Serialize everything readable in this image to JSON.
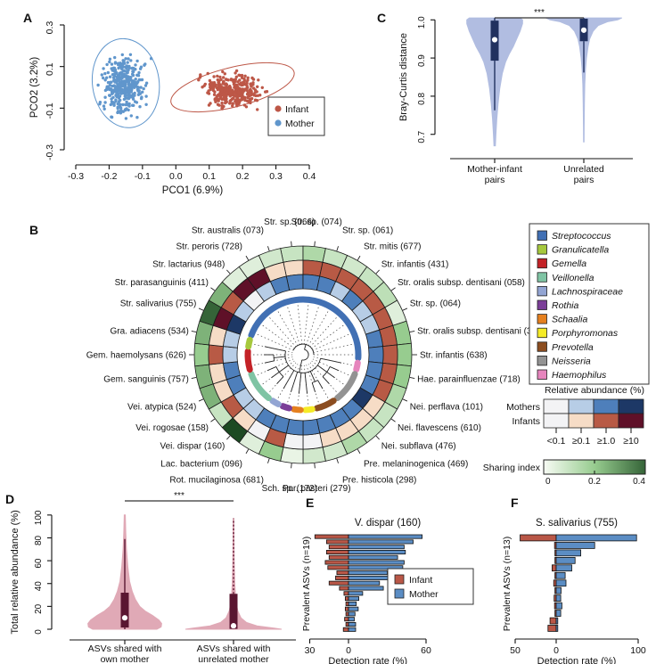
{
  "figure": {
    "panel_labels": {
      "A": "A",
      "B": "B",
      "C": "C",
      "D": "D",
      "E": "E",
      "F": "F"
    }
  },
  "colors": {
    "infant": "#bd5747",
    "mother": "#6096cc",
    "infant_bar": "#b95747",
    "mother_bar": "#5b8dc4",
    "violin_blue_fill": "#b1bde1",
    "violin_blue_box": "#21315f",
    "violin_pink_fill": "#e0a9b6",
    "violin_pink_box": "#5a1631",
    "mother_scale": [
      "#f3f3f5",
      "#b7cde6",
      "#4e7fbb",
      "#1d3866"
    ],
    "infant_scale": [
      "#f3f3f5",
      "#f6dcc6",
      "#b85a45",
      "#5f1028"
    ],
    "sharing_stops": [
      "#f7fbf4",
      "#97cc8f",
      "#1c4a22"
    ]
  },
  "chart_data": [
    {
      "id": "A",
      "type": "scatter",
      "xlabel": "PCO1 (6.9%)",
      "ylabel": "PCO2 (3.2%)",
      "xlim": [
        -0.3,
        0.4
      ],
      "ylim": [
        -0.3,
        0.3
      ],
      "xticks": [
        -0.3,
        -0.2,
        -0.1,
        0.0,
        0.1,
        0.2,
        0.3,
        0.4
      ],
      "yticks": [
        0.3,
        0.1,
        -0.1,
        -0.3
      ],
      "legend": [
        {
          "label": "Infant",
          "color_key": "infant"
        },
        {
          "label": "Mother",
          "color_key": "mother"
        }
      ],
      "clusters": [
        {
          "group": "Mother",
          "n": 380,
          "cx": -0.155,
          "cy": 0.005,
          "sx": 0.085,
          "sy": 0.185,
          "color_key": "mother"
        },
        {
          "group": "Infant",
          "n": 340,
          "cx": 0.165,
          "cy": -0.015,
          "sx": 0.125,
          "sy": 0.115,
          "color_key": "infant"
        }
      ],
      "ellipses": [
        {
          "group": "Mother",
          "cx": -0.15,
          "cy": 0.02,
          "rx": 0.1,
          "ry": 0.215,
          "rot": -8,
          "color_key": "mother"
        },
        {
          "group": "Infant",
          "cx": 0.17,
          "cy": 0.0,
          "rx": 0.19,
          "ry": 0.095,
          "rot": -14,
          "color_key": "infant"
        }
      ]
    },
    {
      "id": "C",
      "type": "violin",
      "ylabel": "Bray-Curtis distance",
      "yticks": [
        0.7,
        0.8,
        0.9,
        1.0
      ],
      "ylim": [
        0.655,
        1.01
      ],
      "significance": "***",
      "groups": [
        {
          "label_lines": [
            "Mother-infant",
            "pairs"
          ],
          "median": 0.948,
          "q1": 0.893,
          "q3": 0.998,
          "whisker_low": 0.763,
          "whisker_high": 1.005,
          "dash_tail": false,
          "profile": [
            [
              1.005,
              0.3
            ],
            [
              1.0,
              0.33
            ],
            [
              0.99,
              0.33
            ],
            [
              0.97,
              0.3
            ],
            [
              0.95,
              0.26
            ],
            [
              0.93,
              0.22
            ],
            [
              0.91,
              0.17
            ],
            [
              0.89,
              0.13
            ],
            [
              0.86,
              0.09
            ],
            [
              0.82,
              0.06
            ],
            [
              0.78,
              0.04
            ],
            [
              0.74,
              0.025
            ],
            [
              0.7,
              0.015
            ],
            [
              0.67,
              0.008
            ]
          ]
        },
        {
          "label_lines": [
            "Unrelated",
            "pairs"
          ],
          "median": 0.973,
          "q1": 0.944,
          "q3": 1.003,
          "whisker_low": 0.862,
          "whisker_high": 1.005,
          "dash_tail": false,
          "profile": [
            [
              1.005,
              0.45
            ],
            [
              1.0,
              0.4
            ],
            [
              0.995,
              0.28
            ],
            [
              0.985,
              0.17
            ],
            [
              0.97,
              0.11
            ],
            [
              0.95,
              0.07
            ],
            [
              0.93,
              0.05
            ],
            [
              0.9,
              0.032
            ],
            [
              0.87,
              0.02
            ],
            [
              0.83,
              0.012
            ],
            [
              0.78,
              0.007
            ],
            [
              0.72,
              0.004
            ],
            [
              0.68,
              0.003
            ]
          ]
        }
      ]
    },
    {
      "id": "B",
      "type": "circular-heatmap",
      "rings_outer_to_inner": [
        "Sharing index",
        "Infants relative abundance",
        "Mothers relative abundance"
      ],
      "genus_legend": [
        {
          "label": "Streptococcus",
          "color": "#4170b4"
        },
        {
          "label": "Granulicatella",
          "color": "#a6c83d"
        },
        {
          "label": "Gemella",
          "color": "#c32227"
        },
        {
          "label": "Veillonella",
          "color": "#7fc4a4"
        },
        {
          "label": "Lachnospiraceae",
          "color": "#93a5d3"
        },
        {
          "label": "Rothia",
          "color": "#7b3e98"
        },
        {
          "label": "Schaalia",
          "color": "#e5801f"
        },
        {
          "label": "Porphyromonas",
          "color": "#f5eb27"
        },
        {
          "label": "Prevotella",
          "color": "#8c4d20"
        },
        {
          "label": "Neisseria",
          "color": "#939393"
        },
        {
          "label": "Haemophilus",
          "color": "#e685bd"
        }
      ],
      "abundance_legend": {
        "title": "Relative abundance (%)",
        "rows": [
          "Mothers",
          "Infants"
        ],
        "levels": [
          "<0.1",
          "≥0.1",
          "≥1.0",
          "≥10"
        ]
      },
      "sharing_legend": {
        "label": "Sharing index",
        "ticks": [
          0,
          0.2,
          0.4
        ]
      },
      "taxa": [
        {
          "name": "Str. sp. (066)",
          "genus": "Streptococcus",
          "mother": 2,
          "infant": 1,
          "sharing": 0.1
        },
        {
          "name": "Str. sp. (074)",
          "genus": "Streptococcus",
          "mother": 2,
          "infant": 2,
          "sharing": 0.15
        },
        {
          "name": "Str. sp. (061)",
          "genus": "Streptococcus",
          "mother": 2,
          "infant": 2,
          "sharing": 0.1
        },
        {
          "name": "Str. mitis (677)",
          "genus": "Streptococcus",
          "mother": 1,
          "infant": 2,
          "sharing": 0.08
        },
        {
          "name": "Str. infantis (431)",
          "genus": "Streptococcus",
          "mother": 2,
          "infant": 2,
          "sharing": 0.1
        },
        {
          "name": "Str. oralis subsp. dentisani (058)",
          "genus": "Streptococcus",
          "mother": 1,
          "infant": 2,
          "sharing": 0.12
        },
        {
          "name": "Str. sp. (064)",
          "genus": "Streptococcus",
          "mother": 1,
          "infant": 2,
          "sharing": 0.05
        },
        {
          "name": "Str. oralis subsp. dentisani (398)",
          "genus": "Streptococcus",
          "mother": 2,
          "infant": 2,
          "sharing": 0.2
        },
        {
          "name": "Str. infantis (638)",
          "genus": "Streptococcus",
          "mother": 2,
          "infant": 2,
          "sharing": 0.2
        },
        {
          "name": "Hae. parainfluenzae (718)",
          "genus": "Haemophilus",
          "mother": 2,
          "infant": 2,
          "sharing": 0.2
        },
        {
          "name": "Nei. perflava (101)",
          "genus": "Neisseria",
          "mother": 2,
          "infant": 2,
          "sharing": 0.15
        },
        {
          "name": "Nei. flavescens (610)",
          "genus": "Neisseria",
          "mother": 3,
          "infant": 1,
          "sharing": 0.1
        },
        {
          "name": "Nei. subflava (476)",
          "genus": "Neisseria",
          "mother": 2,
          "infant": 1,
          "sharing": 0.1
        },
        {
          "name": "Pre. melaninogenica (469)",
          "genus": "Prevotella",
          "mother": 2,
          "infant": 1,
          "sharing": 0.15
        },
        {
          "name": "Pre. histicola (298)",
          "genus": "Prevotella",
          "mother": 2,
          "infant": 1,
          "sharing": 0.08
        },
        {
          "name": "Por. pasteri (279)",
          "genus": "Porphyromonas",
          "mother": 2,
          "infant": 0,
          "sharing": 0.08
        },
        {
          "name": "Sch. sp. (172)",
          "genus": "Schaalia",
          "mother": 2,
          "infant": 0,
          "sharing": 0.03
        },
        {
          "name": "Rot. mucilaginosa (681)",
          "genus": "Rothia",
          "mother": 2,
          "infant": 2,
          "sharing": 0.2
        },
        {
          "name": "Lac. bacterium (096)",
          "genus": "Lachnospiraceae",
          "mother": 2,
          "infant": 0,
          "sharing": 0.05
        },
        {
          "name": "Vei. dispar (160)",
          "genus": "Veillonella",
          "mother": 1,
          "infant": 1,
          "sharing": 0.45
        },
        {
          "name": "Vei. rogosae (158)",
          "genus": "Veillonella",
          "mother": 1,
          "infant": 2,
          "sharing": 0.1
        },
        {
          "name": "Vei. atypica (524)",
          "genus": "Veillonella",
          "mother": 2,
          "infant": 1,
          "sharing": 0.25
        },
        {
          "name": "Gem. sanguinis (757)",
          "genus": "Gemella",
          "mother": 2,
          "infant": 1,
          "sharing": 0.25
        },
        {
          "name": "Gem. haemolysans (626)",
          "genus": "Gemella",
          "mother": 1,
          "infant": 2,
          "sharing": 0.2
        },
        {
          "name": "Gra. adiacens (534)",
          "genus": "Granulicatella",
          "mother": 1,
          "infant": 1,
          "sharing": 0.25
        },
        {
          "name": "Str. salivarius (755)",
          "genus": "Streptococcus",
          "mother": 3,
          "infant": 3,
          "sharing": 0.4
        },
        {
          "name": "Str. parasanguinis (411)",
          "genus": "Streptococcus",
          "mother": 1,
          "infant": 2,
          "sharing": 0.25
        },
        {
          "name": "Str. lactarius (948)",
          "genus": "Streptococcus",
          "mother": 0,
          "infant": 3,
          "sharing": 0.05
        },
        {
          "name": "Str. peroris (728)",
          "genus": "Streptococcus",
          "mother": 1,
          "infant": 3,
          "sharing": 0.05
        },
        {
          "name": "Str. australis (073)",
          "genus": "Streptococcus",
          "mother": 2,
          "infant": 1,
          "sharing": 0.08
        }
      ]
    },
    {
      "id": "D",
      "type": "violin",
      "ylabel": "Total relative abundance (%)",
      "yticks": [
        0,
        20,
        40,
        60,
        80,
        100
      ],
      "ylim": [
        0,
        103
      ],
      "significance": "***",
      "groups": [
        {
          "label_lines": [
            "ASVs shared with",
            "own mother"
          ],
          "median": 10,
          "q1": 1.5,
          "q3": 32,
          "whisker_low": 0,
          "whisker_high": 79,
          "dash_tail": false,
          "profile": [
            [
              0,
              0.3
            ],
            [
              2,
              0.34
            ],
            [
              5,
              0.345
            ],
            [
              8,
              0.32
            ],
            [
              12,
              0.26
            ],
            [
              16,
              0.19
            ],
            [
              20,
              0.14
            ],
            [
              26,
              0.1
            ],
            [
              33,
              0.07
            ],
            [
              42,
              0.045
            ],
            [
              55,
              0.028
            ],
            [
              70,
              0.016
            ],
            [
              85,
              0.009
            ],
            [
              100,
              0.005
            ]
          ]
        },
        {
          "label_lines": [
            "ASVs shared with",
            "unrelated mother"
          ],
          "median": 3,
          "q1": 0.3,
          "q3": 31,
          "whisker_low": 0,
          "whisker_high": 97,
          "dash_tail": true,
          "profile": [
            [
              0,
              0.45
            ],
            [
              1,
              0.38
            ],
            [
              3,
              0.22
            ],
            [
              6,
              0.12
            ],
            [
              10,
              0.07
            ],
            [
              16,
              0.04
            ],
            [
              25,
              0.022
            ],
            [
              40,
              0.012
            ],
            [
              60,
              0.007
            ],
            [
              80,
              0.004
            ],
            [
              97,
              0.003
            ]
          ]
        }
      ]
    },
    {
      "id": "E",
      "type": "bar",
      "title": "V. dispar (160)",
      "ylabel": "Prevalent ASVs (n=19)",
      "xlabel": "Detection rate (%)",
      "tick_left": 30,
      "tick_right": 60,
      "tick_zero": 0,
      "legend": [
        {
          "label": "Infant",
          "color_key": "infant_bar"
        },
        {
          "label": "Mother",
          "color_key": "mother_bar"
        }
      ],
      "rows": [
        {
          "infant": 26,
          "mother": 57
        },
        {
          "infant": 17,
          "mother": 50
        },
        {
          "infant": 15,
          "mother": 43
        },
        {
          "infant": 17,
          "mother": 44
        },
        {
          "infant": 15,
          "mother": 38
        },
        {
          "infant": 18,
          "mother": 43
        },
        {
          "infant": 16,
          "mother": 42
        },
        {
          "infant": 9,
          "mother": 30
        },
        {
          "infant": 10,
          "mother": 35
        },
        {
          "infant": 15,
          "mother": 24
        },
        {
          "infant": 7,
          "mother": 27
        },
        {
          "infant": 3.5,
          "mother": 11
        },
        {
          "infant": 2.5,
          "mother": 8
        },
        {
          "infant": 2,
          "mother": 6
        },
        {
          "infant": 2.5,
          "mother": 7.5
        },
        {
          "infant": 2,
          "mother": 5
        },
        {
          "infant": 3,
          "mother": 4.5
        },
        {
          "infant": 2,
          "mother": 5.5
        },
        {
          "infant": 4,
          "mother": 5.5
        }
      ]
    },
    {
      "id": "F",
      "type": "bar",
      "title": "S. salivarius (755)",
      "ylabel": "Prevalent ASVs (n=13)",
      "xlabel": "Detection rate (%)",
      "tick_left": 50,
      "tick_right": 100,
      "tick_zero": 0,
      "rows": [
        {
          "infant": 44,
          "mother": 98
        },
        {
          "infant": 2,
          "mother": 47
        },
        {
          "infant": 1.5,
          "mother": 30
        },
        {
          "infant": 1.5,
          "mother": 23
        },
        {
          "infant": 5,
          "mother": 19
        },
        {
          "infant": 1.5,
          "mother": 11
        },
        {
          "infant": 3,
          "mother": 12
        },
        {
          "infant": 1.5,
          "mother": 6
        },
        {
          "infant": 2.5,
          "mother": 5.5
        },
        {
          "infant": 2,
          "mother": 7
        },
        {
          "infant": 1.5,
          "mother": 5.5
        },
        {
          "infant": 7.5,
          "mother": 2
        },
        {
          "infant": 10,
          "mother": 2
        }
      ]
    }
  ]
}
